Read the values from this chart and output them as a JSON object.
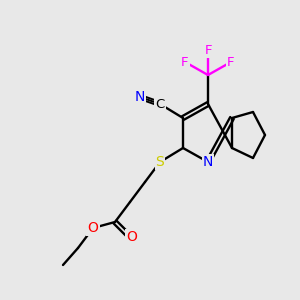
{
  "background_color": "#e8e8e8",
  "atom_colors": {
    "C": "#000000",
    "N": "#0000ff",
    "O": "#ff0000",
    "S": "#cccc00",
    "F": "#ff00ff",
    "bond": "#000000"
  },
  "figsize": [
    3.0,
    3.0
  ],
  "dpi": 100
}
